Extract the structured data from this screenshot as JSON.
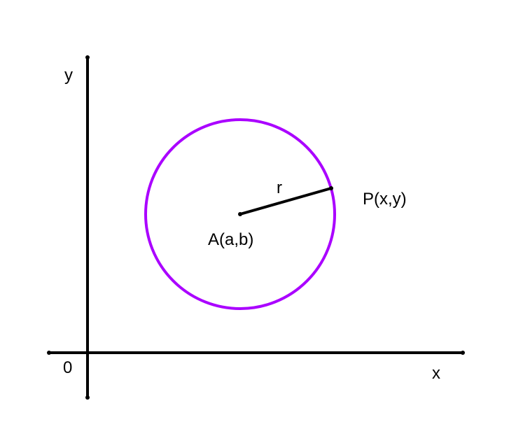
{
  "diagram": {
    "axes": {
      "x_label": "x",
      "y_label": "y",
      "origin_label": "0"
    },
    "circle": {
      "center_label": "A(a,b)",
      "point_label": "P(x,y)",
      "radius_label": "r"
    },
    "colors": {
      "circle": "#aa00ff",
      "axes": "#000000",
      "radius": "#000000"
    }
  }
}
